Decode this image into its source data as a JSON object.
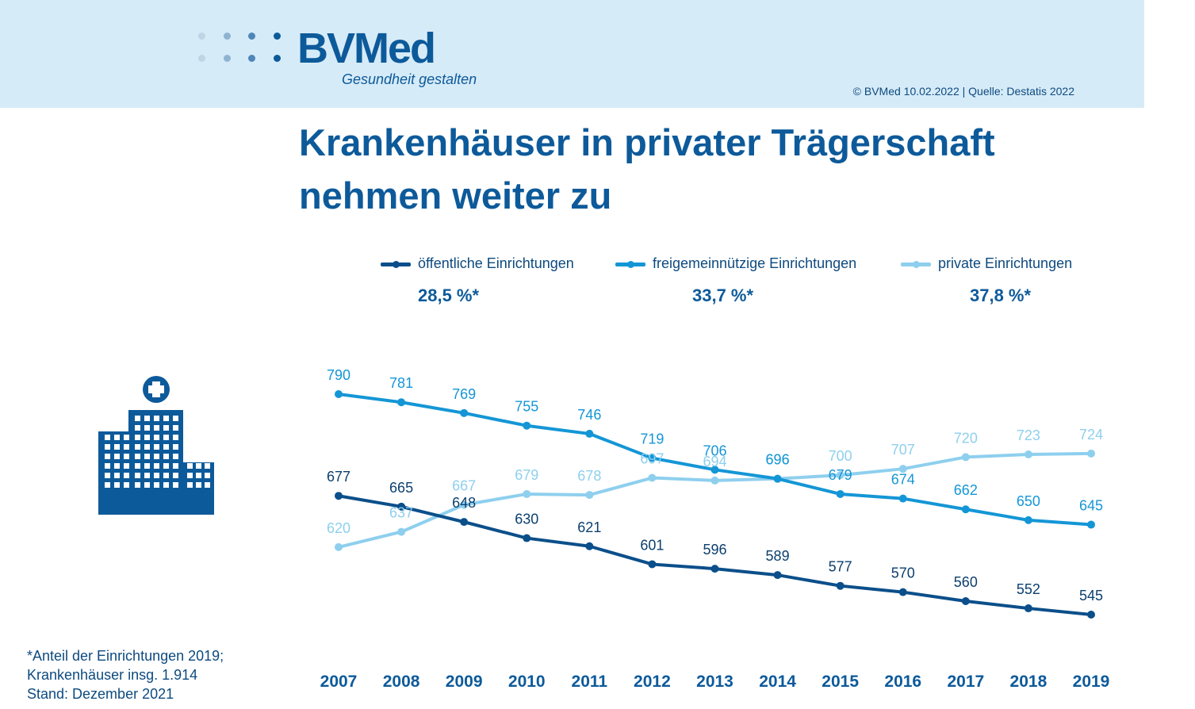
{
  "header": {
    "logo_text": "BVMed",
    "logo_tagline": "Gesundheit gestalten",
    "credit": "© BVMed 10.02.2022 | Quelle: Destatis 2022"
  },
  "icon": "hospital-building-icon",
  "footnote": {
    "line1": "*Anteil der Einrichtungen 2019;",
    "line2": "Krankenhäuser insg. 1.914",
    "line3": "Stand: Dezember 2021"
  },
  "colors": {
    "brand": "#0d5a9a",
    "header_bg": "#d6ebf8",
    "series_oeffentlich": "#0b4f8a",
    "series_freigemeinnuetzig": "#1496d6",
    "series_privat": "#8ecfee"
  },
  "chart_data": {
    "type": "line",
    "title": "Krankenhäuser in privater Trägerschaft nehmen weiter zu",
    "xlabel": "",
    "ylabel": "",
    "grid": false,
    "legend_position": "top",
    "x": [
      "2007",
      "2008",
      "2009",
      "2010",
      "2011",
      "2012",
      "2013",
      "2014",
      "2015",
      "2016",
      "2017",
      "2018",
      "2019"
    ],
    "ylim": [
      545,
      790
    ],
    "series": [
      {
        "name": "öffentliche Einrichtungen",
        "share": "28,5 %*",
        "color": "#0b4f8a",
        "values": [
          677,
          665,
          648,
          630,
          621,
          601,
          596,
          589,
          577,
          570,
          560,
          552,
          545
        ]
      },
      {
        "name": "freigemeinnützige Einrichtungen",
        "share": "33,7 %*",
        "color": "#1496d6",
        "values": [
          790,
          781,
          769,
          755,
          746,
          719,
          706,
          696,
          679,
          674,
          662,
          650,
          645
        ]
      },
      {
        "name": "private Einrichtungen",
        "share": "37,8 %*",
        "color": "#8ecfee",
        "values": [
          620,
          637,
          667,
          679,
          678,
          697,
          694,
          696,
          700,
          707,
          720,
          723,
          724
        ]
      }
    ]
  }
}
